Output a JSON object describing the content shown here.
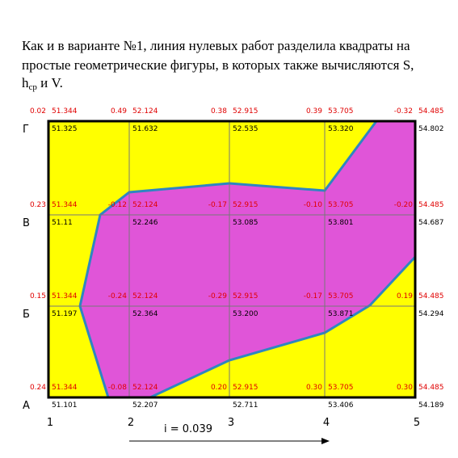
{
  "heading": {
    "line1": "Как и в варианте №1, линия нулевых работ разделила квадраты на",
    "line2": "простые геометрические фигуры, в которых также вычисляются S,",
    "line3_h": "h",
    "line3_sub": "ср",
    "line3_end": " и V."
  },
  "columns": [
    "1",
    "2",
    "3",
    "4",
    "5"
  ],
  "rows": [
    {
      "label": "Г",
      "work": [
        "0.02",
        "0.49",
        "0.38",
        "0.39",
        "-0.32"
      ],
      "design": [
        "51.344",
        "52.124",
        "52.915",
        "53.705",
        "54.485"
      ],
      "actual": [
        "51.325",
        "51.632",
        "52.535",
        "53.320",
        "54.802"
      ]
    },
    {
      "label": "В",
      "work": [
        "0.23",
        "-0.12",
        "-0.17",
        "-0.10",
        "-0.20"
      ],
      "design": [
        "51.344",
        "52.124",
        "52.915",
        "53.705",
        "54.485"
      ],
      "actual": [
        "51.11",
        "52.246",
        "53.085",
        "53.801",
        "54.687"
      ]
    },
    {
      "label": "Б",
      "work": [
        "0.15",
        "-0.24",
        "-0.29",
        "-0.17",
        "0.19"
      ],
      "design": [
        "51.344",
        "52.124",
        "52.915",
        "53.705",
        "54.485"
      ],
      "actual": [
        "51.197",
        "52.364",
        "53.200",
        "53.871",
        "54.294"
      ]
    },
    {
      "label": "А",
      "work": [
        "0.24",
        "-0.08",
        "0.20",
        "0.30",
        "0.30"
      ],
      "design": [
        "51.344",
        "52.124",
        "52.915",
        "53.705",
        "54.485"
      ],
      "actual": [
        "51.101",
        "52.207",
        "52.711",
        "53.406",
        "54.189"
      ]
    }
  ],
  "slope": "i = 0.039"
}
